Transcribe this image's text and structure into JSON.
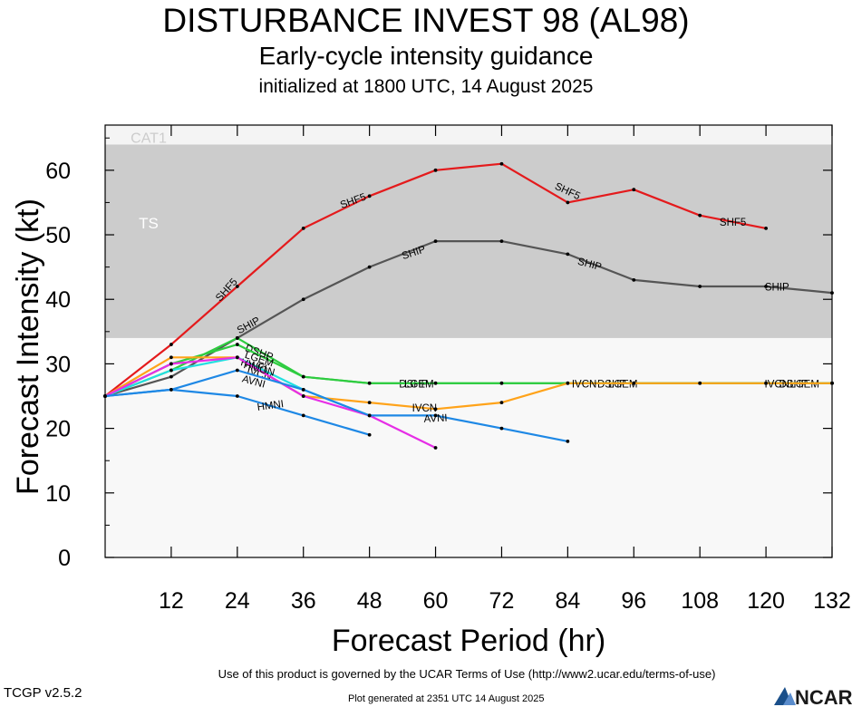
{
  "header": {
    "title": "DISTURBANCE INVEST 98 (AL98)",
    "subtitle": "Early-cycle intensity guidance",
    "init": "initialized at 1800 UTC, 14 August 2025"
  },
  "footer": {
    "terms": "Use of this product is governed by the UCAR Terms of Use (http://www2.ucar.edu/terms-of-use)",
    "generated": "Plot generated at 2351 UTC   14 August 2025",
    "version": "TCGP v2.5.2",
    "logo": "NCAR"
  },
  "chart_data": {
    "type": "line",
    "xlabel": "Forecast Period (hr)",
    "ylabel": "Forecast Intensity (kt)",
    "xlim": [
      0,
      132
    ],
    "ylim": [
      0,
      67
    ],
    "x_ticks": [
      12,
      24,
      36,
      48,
      60,
      72,
      84,
      96,
      108,
      120,
      132
    ],
    "y_ticks": [
      0,
      10,
      20,
      30,
      40,
      50,
      60
    ],
    "bands": [
      {
        "label": "TS",
        "from": 34,
        "to": 64,
        "color": "#cccccc"
      },
      {
        "label": "CAT1",
        "from": 64,
        "to": 67,
        "color": "#f4f4f4"
      }
    ],
    "background_color": "#f8f8f8",
    "series": [
      {
        "name": "SHF5",
        "color": "#e41a1c",
        "points": [
          [
            0,
            25
          ],
          [
            12,
            33
          ],
          [
            24,
            42
          ],
          [
            36,
            51
          ],
          [
            48,
            56
          ],
          [
            60,
            60
          ],
          [
            72,
            61
          ],
          [
            84,
            55
          ],
          [
            96,
            57
          ],
          [
            108,
            53
          ],
          [
            120,
            51
          ]
        ],
        "labels": [
          [
            22,
            41.5,
            -48
          ],
          [
            45,
            55.3,
            -20
          ],
          [
            84,
            56.8,
            25
          ],
          [
            114,
            52,
            0
          ]
        ]
      },
      {
        "name": "SHIP",
        "color": "#555555",
        "points": [
          [
            0,
            25
          ],
          [
            12,
            28
          ],
          [
            24,
            34
          ],
          [
            36,
            40
          ],
          [
            48,
            45
          ],
          [
            60,
            49
          ],
          [
            72,
            49
          ],
          [
            84,
            47
          ],
          [
            96,
            43
          ],
          [
            108,
            42
          ],
          [
            120,
            42
          ],
          [
            132,
            41
          ]
        ],
        "labels": [
          [
            26,
            36,
            -28
          ],
          [
            56,
            47.3,
            -18
          ],
          [
            88,
            45.5,
            15
          ],
          [
            122,
            41.9,
            0
          ]
        ]
      },
      {
        "name": "DSHP",
        "color": "#2ecc40",
        "points": [
          [
            0,
            25
          ],
          [
            12,
            29
          ],
          [
            24,
            34
          ],
          [
            36,
            28
          ],
          [
            48,
            27
          ],
          [
            60,
            27
          ],
          [
            72,
            27
          ],
          [
            84,
            27
          ],
          [
            96,
            27
          ],
          [
            108,
            27
          ],
          [
            120,
            27
          ],
          [
            132,
            27
          ]
        ],
        "labels": [
          [
            28,
            31.8,
            20
          ],
          [
            56,
            26.9,
            0
          ],
          [
            92,
            26.9,
            0
          ],
          [
            125,
            26.9,
            0
          ]
        ]
      },
      {
        "name": "LGEM",
        "color": "#2ecc40",
        "points": [
          [
            0,
            25
          ],
          [
            12,
            30
          ],
          [
            24,
            33
          ],
          [
            36,
            28
          ],
          [
            48,
            27
          ],
          [
            60,
            27
          ],
          [
            72,
            27
          ],
          [
            84,
            27
          ],
          [
            96,
            27
          ],
          [
            108,
            27
          ],
          [
            120,
            27
          ],
          [
            132,
            27
          ]
        ],
        "labels": [
          [
            28,
            30.8,
            18
          ],
          [
            57,
            26.9,
            0
          ],
          [
            94,
            26.9,
            0
          ],
          [
            127,
            26.9,
            0
          ]
        ]
      },
      {
        "name": "IVCN",
        "color": "#ffa31a",
        "points": [
          [
            0,
            25
          ],
          [
            12,
            31
          ],
          [
            24,
            31
          ],
          [
            36,
            25
          ],
          [
            48,
            24
          ],
          [
            60,
            23
          ],
          [
            72,
            24
          ],
          [
            84,
            27
          ],
          [
            96,
            27
          ],
          [
            108,
            27
          ],
          [
            120,
            27
          ],
          [
            132,
            27
          ]
        ],
        "labels": [
          [
            28,
            28.5,
            15
          ],
          [
            58,
            23.2,
            0
          ],
          [
            87,
            26.9,
            0
          ],
          [
            122,
            26.9,
            0
          ]
        ]
      },
      {
        "name": "HWFI",
        "color": "#22e0e0",
        "points": [
          [
            0,
            25
          ],
          [
            12,
            29
          ],
          [
            24,
            31
          ],
          [
            36,
            26
          ],
          [
            48,
            22
          ]
        ],
        "labels": [
          [
            27,
            29.8,
            15
          ]
        ]
      },
      {
        "name": "HMON",
        "color": "#e62ee6",
        "points": [
          [
            0,
            25
          ],
          [
            12,
            30
          ],
          [
            24,
            31
          ],
          [
            36,
            25
          ],
          [
            48,
            22
          ],
          [
            60,
            17
          ]
        ],
        "labels": [
          [
            28,
            29.3,
            15
          ]
        ]
      },
      {
        "name": "AVNI",
        "color": "#1e88e5",
        "points": [
          [
            0,
            25
          ],
          [
            12,
            26
          ],
          [
            24,
            29
          ],
          [
            36,
            26
          ],
          [
            48,
            22
          ],
          [
            60,
            22
          ],
          [
            72,
            20
          ],
          [
            84,
            18
          ]
        ],
        "labels": [
          [
            27,
            27.3,
            15
          ],
          [
            60,
            21.6,
            -3
          ]
        ]
      },
      {
        "name": "HMNI",
        "color": "#1e88e5",
        "points": [
          [
            0,
            25
          ],
          [
            12,
            26
          ],
          [
            24,
            25
          ],
          [
            36,
            22
          ],
          [
            48,
            19
          ]
        ],
        "labels": [
          [
            30,
            23.6,
            -8
          ]
        ]
      }
    ]
  }
}
